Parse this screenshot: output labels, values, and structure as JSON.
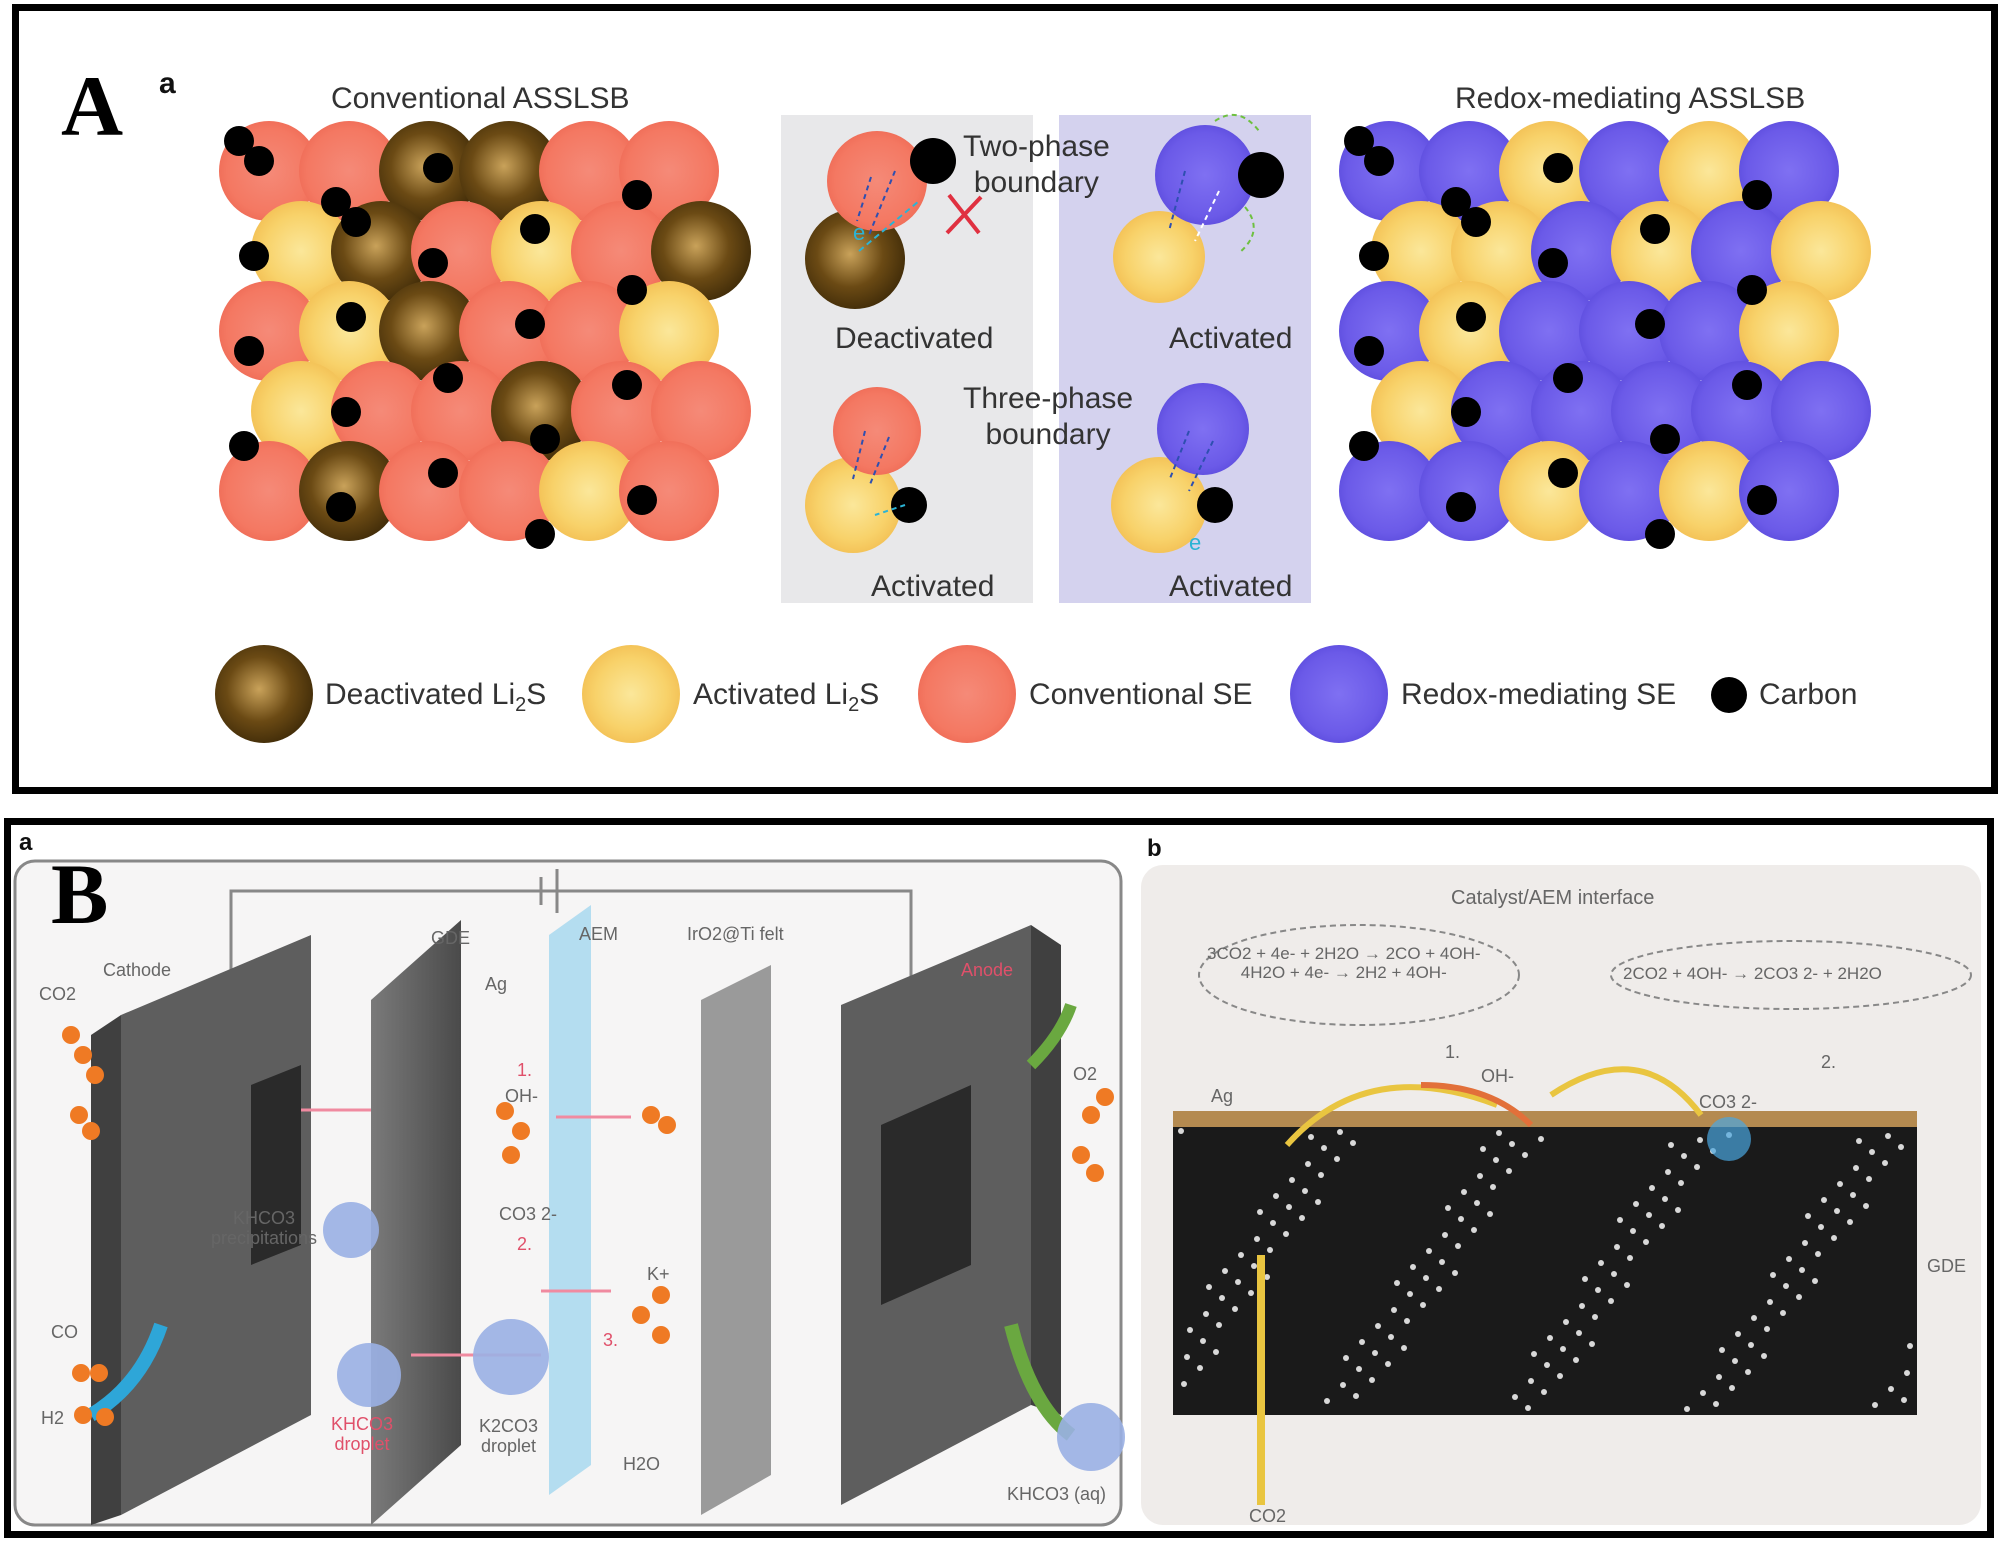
{
  "panelA": {
    "letter": "A",
    "sub": "a",
    "left_title": "Conventional ASSLSB",
    "right_title": "Redox-mediating ASSLSB",
    "two_phase": [
      "Two-phase",
      "boundary"
    ],
    "three_phase": [
      "Three-phase",
      "boundary"
    ],
    "deactivated": "Deactivated",
    "activated": "Activated",
    "electron": "e",
    "legend": {
      "deactivated_li2s": {
        "pre": "Deactivated Li",
        "sub": "2",
        "post": "S"
      },
      "activated_li2s": {
        "pre": "Activated Li",
        "sub": "2",
        "post": "S"
      },
      "conventional_se": "Conventional SE",
      "redox_se": "Redox-mediating SE",
      "carbon": "Carbon"
    },
    "colors": {
      "deactivated": "#6b4a14",
      "activated": "#f8d26a",
      "conventional": "#f47862",
      "redox": "#6b5ae8",
      "carbon": "#000000"
    }
  },
  "panelB": {
    "letter": "B",
    "sub_a": "a",
    "sub_b": "b",
    "cathode": "Cathode",
    "anode": "Anode",
    "gde": "GDE",
    "aem": "AEM",
    "irox": "IrO2@Ti felt",
    "ag": "Ag",
    "co2": "CO2",
    "o2": "O2",
    "co": "CO",
    "h2": "H2",
    "oh": "OH-",
    "co3": "CO3 2-",
    "k": "K+",
    "h2o": "H2O",
    "khco3_precip": [
      "KHCO3",
      "precipitations"
    ],
    "khco3_droplet": [
      "KHCO3",
      "droplet"
    ],
    "k2co3_droplet": [
      "K2CO3",
      "droplet"
    ],
    "khco3_aq": "KHCO3 (aq)",
    "step1": "1.",
    "step2": "2.",
    "step3": "3.",
    "interface_title": "Catalyst/AEM interface",
    "eq_left": [
      "3CO2 + 4e- + 2H2O → 2CO + 4OH-",
      "4H2O + 4e- → 2H2 + 4OH-"
    ],
    "eq_right": "2CO2 + 4OH- → 2CO3 2- + 2H2O",
    "gde_label": "GDE",
    "co2_bottom": "CO2",
    "ag_label": "Ag",
    "b_step1": "1.",
    "b_step2": "2.",
    "b_oh": "OH-",
    "b_co3": "CO3 2-"
  }
}
